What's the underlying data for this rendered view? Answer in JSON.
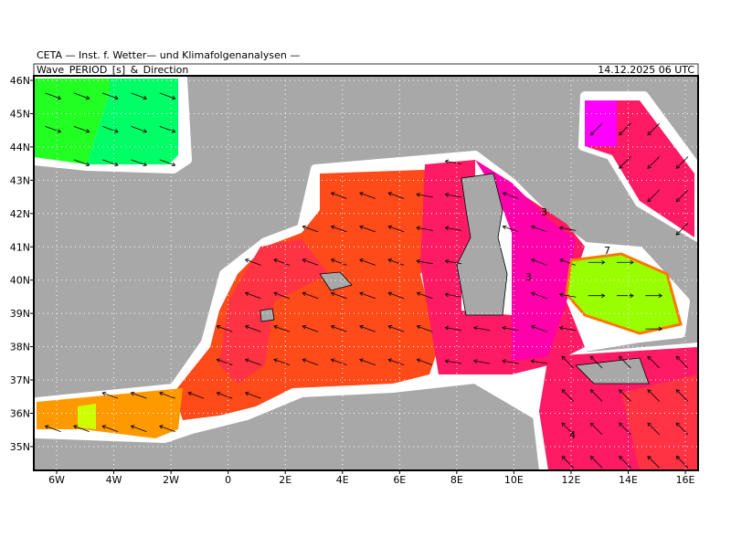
{
  "header": {
    "title": "CETA — Inst. f. Wetter— und Klimafolgenanalysen —",
    "field": "Wave_PERIOD_[s]_&_Direction",
    "time": "14.12.2025 06 UTC"
  },
  "axes": {
    "lon_labels": [
      "6W",
      "4W",
      "2W",
      "0",
      "2E",
      "4E",
      "6E",
      "8E",
      "10E",
      "12E",
      "14E",
      "16E"
    ],
    "lat_labels": [
      "46N",
      "45N",
      "44N",
      "43N",
      "42N",
      "41N",
      "40N",
      "39N",
      "38N",
      "37N",
      "36N",
      "35N"
    ]
  },
  "contour_labels": [
    "3",
    "3",
    "4",
    "7"
  ]
}
